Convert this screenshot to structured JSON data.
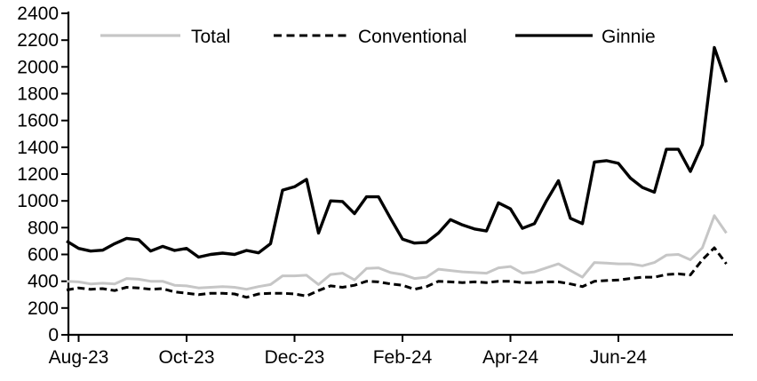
{
  "chart_data": {
    "type": "line",
    "title": "",
    "xlabel": "",
    "ylabel": "",
    "grid": false,
    "legend_position": "top",
    "y_axis": {
      "min": 0,
      "max": 2400,
      "ticks": [
        0,
        200,
        400,
        600,
        800,
        1000,
        1200,
        1400,
        1600,
        1800,
        2000,
        2200,
        2400
      ]
    },
    "x_axis": {
      "ticks": [
        {
          "index": 1,
          "label": "Aug-23"
        },
        {
          "index": 10,
          "label": "Oct-23"
        },
        {
          "index": 19,
          "label": "Dec-23"
        },
        {
          "index": 28,
          "label": "Feb-24"
        },
        {
          "index": 37,
          "label": "Apr-24"
        },
        {
          "index": 46,
          "label": "Jun-24"
        }
      ]
    },
    "series": [
      {
        "name": "Total",
        "color": "#c6c6c6",
        "dash": "solid",
        "values": [
          400,
          395,
          380,
          385,
          380,
          420,
          415,
          400,
          400,
          370,
          365,
          350,
          355,
          360,
          355,
          340,
          360,
          375,
          440,
          440,
          445,
          375,
          450,
          460,
          410,
          495,
          500,
          465,
          450,
          420,
          430,
          490,
          480,
          470,
          465,
          460,
          500,
          510,
          460,
          470,
          500,
          530,
          480,
          430,
          540,
          535,
          530,
          530,
          515,
          540,
          595,
          600,
          560,
          650,
          890,
          760
        ]
      },
      {
        "name": "Conventional",
        "color": "#000000",
        "dash": "dashed",
        "values": [
          335,
          350,
          340,
          345,
          330,
          355,
          350,
          340,
          345,
          320,
          310,
          300,
          310,
          310,
          305,
          280,
          305,
          310,
          310,
          305,
          290,
          330,
          365,
          355,
          370,
          400,
          395,
          380,
          370,
          340,
          360,
          400,
          395,
          390,
          395,
          390,
          400,
          400,
          390,
          390,
          395,
          395,
          380,
          360,
          400,
          405,
          410,
          420,
          430,
          430,
          450,
          455,
          447,
          560,
          650,
          530
        ]
      },
      {
        "name": "Ginnie",
        "color": "#000000",
        "dash": "solid",
        "values": [
          700,
          645,
          625,
          632,
          680,
          720,
          710,
          625,
          660,
          630,
          645,
          580,
          600,
          610,
          600,
          630,
          612,
          680,
          1080,
          1105,
          1160,
          760,
          1000,
          995,
          905,
          1030,
          1030,
          870,
          715,
          685,
          690,
          760,
          860,
          820,
          790,
          775,
          985,
          940,
          795,
          830,
          1000,
          1150,
          870,
          830,
          1290,
          1300,
          1280,
          1170,
          1100,
          1065,
          1385,
          1385,
          1220,
          1420,
          2145,
          1885
        ]
      }
    ]
  }
}
